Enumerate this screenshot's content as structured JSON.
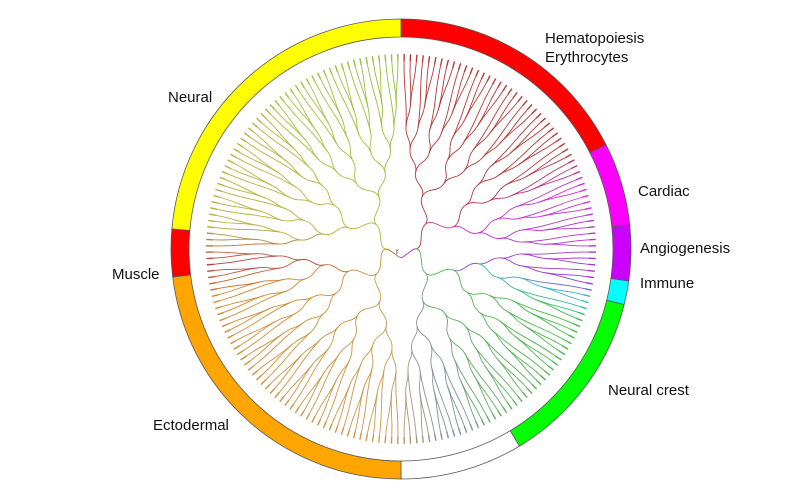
{
  "diagram": {
    "type": "circular-dendrogram",
    "segments": [
      {
        "id": "hematopoiesis",
        "label": "Hematopoiesis\nErythrocytes",
        "color": "#ff0000",
        "from_deg": 0,
        "to_deg": 63
      },
      {
        "id": "cardiac",
        "label": "Cardiac",
        "color": "#ff00ff",
        "from_deg": 63,
        "to_deg": 84
      },
      {
        "id": "angiogenesis",
        "label": "Angiogenesis",
        "color": "#cc00ff",
        "from_deg": 84,
        "to_deg": 98
      },
      {
        "id": "immune",
        "label": "Immune",
        "color": "#00ffff",
        "from_deg": 98,
        "to_deg": 104
      },
      {
        "id": "neural-crest",
        "label": "Neural crest",
        "color": "#00ff00",
        "from_deg": 104,
        "to_deg": 149
      },
      {
        "id": "unlabeled",
        "label": "",
        "color": "#ffffff",
        "from_deg": 149,
        "to_deg": 180
      },
      {
        "id": "ectodermal",
        "label": "Ectodermal",
        "color": "#ffa500",
        "from_deg": 180,
        "to_deg": 263
      },
      {
        "id": "muscle",
        "label": "Muscle",
        "color": "#ff0000",
        "from_deg": 263,
        "to_deg": 275
      },
      {
        "id": "neural",
        "label": "Neural",
        "color": "#ffff00",
        "from_deg": 275,
        "to_deg": 360
      }
    ],
    "tree_color_stops": [
      {
        "deg": 0,
        "color": "#b33a3a"
      },
      {
        "deg": 60,
        "color": "#b33a3a"
      },
      {
        "deg": 70,
        "color": "#cc33cc"
      },
      {
        "deg": 100,
        "color": "#9a3acc"
      },
      {
        "deg": 105,
        "color": "#33bbcc"
      },
      {
        "deg": 112,
        "color": "#44bb44"
      },
      {
        "deg": 150,
        "color": "#66aa66"
      },
      {
        "deg": 165,
        "color": "#7a8fa8"
      },
      {
        "deg": 185,
        "color": "#c89a50"
      },
      {
        "deg": 255,
        "color": "#d08a30"
      },
      {
        "deg": 265,
        "color": "#b34040"
      },
      {
        "deg": 278,
        "color": "#b8b040"
      },
      {
        "deg": 330,
        "color": "#a6c040"
      },
      {
        "deg": 360,
        "color": "#8fbf3a"
      }
    ],
    "root_label": "r",
    "leaf_count": 192
  }
}
